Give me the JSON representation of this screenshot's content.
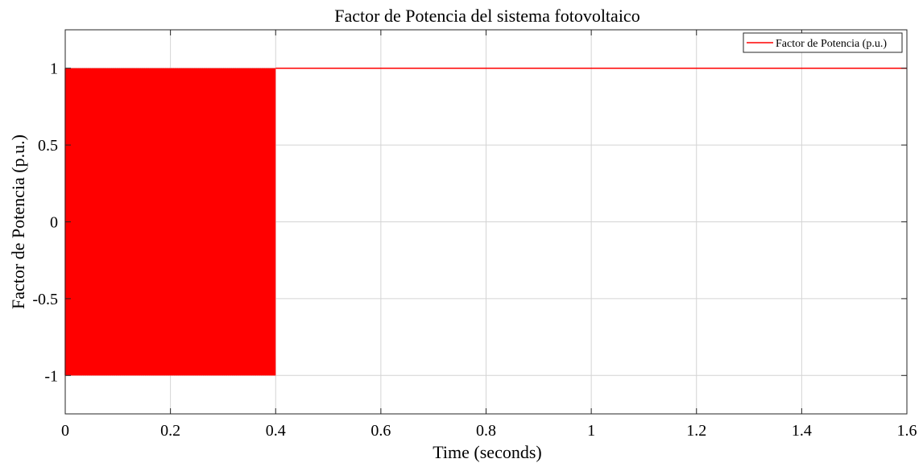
{
  "chart_data": {
    "type": "line",
    "title": "Factor de Potencia del sistema fotovoltaico",
    "xlabel": "Time (seconds)",
    "ylabel": "Factor de Potencia (p.u.)",
    "xlim": [
      0,
      1.6
    ],
    "ylim": [
      -1.25,
      1.25
    ],
    "x_ticks": [
      0,
      0.2,
      0.4,
      0.6,
      0.8,
      1,
      1.2,
      1.4,
      1.6
    ],
    "x_tick_labels": [
      "0",
      "0.2",
      "0.4",
      "0.6",
      "0.8",
      "1",
      "1.2",
      "1.4",
      "1.6"
    ],
    "y_ticks": [
      1,
      0.5,
      0,
      -0.5,
      -1
    ],
    "y_tick_labels": [
      "1",
      "0.5",
      "0",
      "-0.5",
      "-1"
    ],
    "grid": true,
    "legend_position": "top-right",
    "series": [
      {
        "name": "Factor de Potencia (p.u.)",
        "color": "#ff0000",
        "segments": [
          {
            "kind": "oscillation",
            "x_start": 0,
            "x_end": 0.4,
            "y_min": -1,
            "y_max": 1
          },
          {
            "kind": "constant",
            "x_start": 0.4,
            "x_end": 1.6,
            "y": 1
          }
        ]
      }
    ]
  }
}
